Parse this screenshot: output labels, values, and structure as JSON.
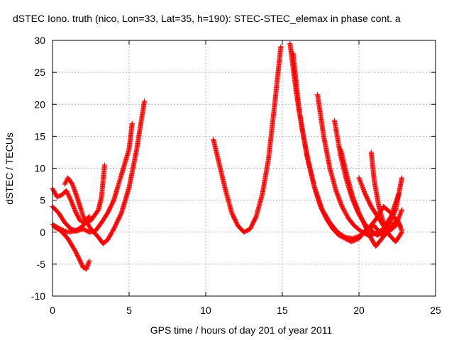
{
  "chart_data": {
    "type": "scatter",
    "title": "dSTEC Iono. truth (nico, Lon=33, Lat=35, h=190): STEC-STEC_elemax in phase cont. a",
    "xlabel": "GPS time / hours of day 201 of year 2011",
    "ylabel": "dSTEC  / TECUs",
    "xlim": [
      0,
      25
    ],
    "ylim": [
      -10,
      30
    ],
    "xticks": [
      "0",
      "5",
      "10",
      "15",
      "20",
      "25"
    ],
    "yticks": [
      "-10",
      "-5",
      "0",
      "5",
      "10",
      "15",
      "20",
      "25",
      "30"
    ],
    "grid": true,
    "marker": "plus",
    "color": "#ff0000",
    "series": [
      {
        "values": [
          [
            0,
            6.8
          ],
          [
            0.3,
            5.5
          ],
          [
            0.6,
            5.8
          ],
          [
            0.9,
            6.5
          ],
          [
            1.2,
            5
          ],
          [
            1.5,
            3.2
          ],
          [
            1.8,
            1.8
          ],
          [
            2.1,
            1.5
          ],
          [
            2.5,
            1.8
          ],
          [
            3.0,
            3.5
          ],
          [
            3.2,
            5.5
          ],
          [
            3.4,
            10.5
          ]
        ]
      },
      {
        "values": [
          [
            0,
            4
          ],
          [
            0.4,
            3
          ],
          [
            0.8,
            1.5
          ],
          [
            1.2,
            0.5
          ],
          [
            1.6,
            0.2
          ],
          [
            2.0,
            0.5
          ],
          [
            2.4,
            0.0
          ],
          [
            2.8,
            0.2
          ],
          [
            3.2,
            1.5
          ],
          [
            3.6,
            3
          ],
          [
            4.0,
            5
          ],
          [
            4.5,
            9
          ],
          [
            5.0,
            13
          ],
          [
            5.2,
            17
          ]
        ]
      },
      {
        "values": [
          [
            0.1,
            0.8
          ],
          [
            0.5,
            0.3
          ],
          [
            1.0,
            -1.0
          ],
          [
            1.5,
            -3.0
          ],
          [
            2.0,
            -5.5
          ],
          [
            2.2,
            -5.8
          ],
          [
            2.4,
            -4.5
          ]
        ]
      },
      {
        "values": [
          [
            0.8,
            7.5
          ],
          [
            1.0,
            8.5
          ],
          [
            1.3,
            7.5
          ],
          [
            1.6,
            5.5
          ],
          [
            2.0,
            2.5
          ],
          [
            2.5,
            0.5
          ],
          [
            3.0,
            -0.8
          ],
          [
            3.3,
            -1.8
          ],
          [
            3.6,
            -1.2
          ],
          [
            4.0,
            0.5
          ],
          [
            4.5,
            3
          ],
          [
            5.0,
            7
          ],
          [
            5.5,
            13
          ],
          [
            6.0,
            20.5
          ]
        ]
      },
      {
        "values": [
          [
            0,
            1.2
          ],
          [
            0.5,
            0.5
          ],
          [
            1.0,
            0.0
          ],
          [
            1.5,
            0.2
          ],
          [
            2.0,
            1.0
          ],
          [
            2.4,
            2.5
          ]
        ]
      },
      {
        "values": [
          [
            10.5,
            14.5
          ],
          [
            10.9,
            10.5
          ],
          [
            11.3,
            6.5
          ],
          [
            11.7,
            3
          ],
          [
            12.1,
            1
          ],
          [
            12.5,
            0.0
          ],
          [
            12.9,
            0.5
          ],
          [
            13.3,
            2.5
          ],
          [
            13.7,
            6
          ],
          [
            14.1,
            11.5
          ],
          [
            14.5,
            20
          ],
          [
            14.9,
            29
          ]
        ]
      },
      {
        "values": [
          [
            15.5,
            29.5
          ],
          [
            15.9,
            22
          ],
          [
            16.3,
            16
          ],
          [
            16.7,
            11
          ],
          [
            17.1,
            7
          ],
          [
            17.5,
            4
          ],
          [
            17.9,
            2
          ],
          [
            18.3,
            0.5
          ],
          [
            18.7,
            -0.5
          ],
          [
            19.1,
            -1
          ],
          [
            19.5,
            -1.5
          ],
          [
            20.0,
            -1
          ],
          [
            20.5,
            0.5
          ],
          [
            21.0,
            1
          ],
          [
            21.5,
            -0.5
          ],
          [
            22.0,
            0.5
          ]
        ]
      },
      {
        "values": [
          [
            15.7,
            28
          ],
          [
            16.1,
            19
          ],
          [
            16.6,
            12
          ],
          [
            17.1,
            7
          ],
          [
            17.6,
            3.5
          ],
          [
            18.1,
            1.5
          ],
          [
            18.6,
            0
          ],
          [
            19.1,
            -0.8
          ],
          [
            19.6,
            -1
          ],
          [
            20.1,
            -0.5
          ],
          [
            20.6,
            0.5
          ],
          [
            21.1,
            2
          ],
          [
            21.6,
            4
          ],
          [
            22.1,
            3
          ],
          [
            22.7,
            1
          ]
        ]
      },
      {
        "values": [
          [
            17.3,
            21.5
          ],
          [
            17.7,
            15
          ],
          [
            18.1,
            10
          ],
          [
            18.5,
            6.5
          ],
          [
            18.9,
            4
          ],
          [
            19.3,
            2.2
          ],
          [
            19.7,
            1
          ],
          [
            20.1,
            0.2
          ],
          [
            20.6,
            -0.5
          ],
          [
            21.1,
            -0.2
          ],
          [
            21.6,
            0.5
          ],
          [
            22.1,
            2.5
          ],
          [
            22.6,
            6
          ]
        ]
      },
      {
        "values": [
          [
            18.4,
            17.5
          ],
          [
            18.8,
            12
          ],
          [
            19.2,
            8
          ],
          [
            19.6,
            5
          ],
          [
            20.0,
            2.8
          ],
          [
            20.4,
            1.2
          ],
          [
            20.8,
            0.3
          ],
          [
            21.2,
            -0.5
          ],
          [
            21.6,
            0.2
          ],
          [
            22.0,
            1.5
          ],
          [
            22.4,
            3.5
          ],
          [
            22.8,
            8.5
          ]
        ]
      },
      {
        "values": [
          [
            18.8,
            13
          ],
          [
            19.2,
            9
          ],
          [
            19.6,
            5.5
          ],
          [
            20.0,
            3
          ],
          [
            20.4,
            1
          ],
          [
            20.8,
            -1
          ],
          [
            21.1,
            -2.2
          ],
          [
            21.5,
            -1
          ],
          [
            22.0,
            0.5
          ],
          [
            22.5,
            2
          ],
          [
            22.8,
            0.2
          ]
        ]
      },
      {
        "values": [
          [
            20.0,
            8.5
          ],
          [
            20.4,
            6
          ],
          [
            20.8,
            4
          ],
          [
            21.2,
            2.5
          ],
          [
            21.6,
            1
          ],
          [
            22.0,
            -0.5
          ],
          [
            22.4,
            -1.5
          ],
          [
            22.8,
            0
          ]
        ]
      },
      {
        "values": [
          [
            20.8,
            12.5
          ],
          [
            21.0,
            8
          ],
          [
            21.3,
            4
          ],
          [
            21.6,
            1.5
          ],
          [
            22.0,
            0.2
          ],
          [
            22.4,
            1
          ],
          [
            22.8,
            3.5
          ]
        ]
      }
    ]
  }
}
